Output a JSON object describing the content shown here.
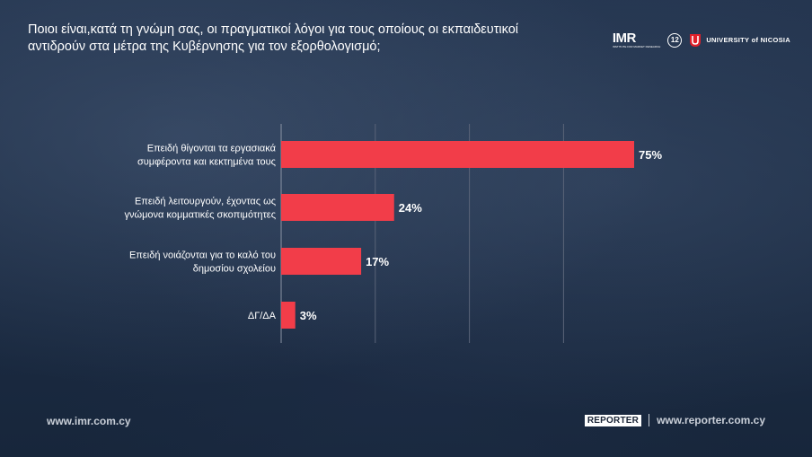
{
  "header": {
    "title": "Ποιοι είναι,κατά τη γνώμη σας, οι πραγματικοί λόγοι για τους οποίους οι εκπαιδευτικοί αντιδρούν στα μέτρα της Κυβέρνησης για τον εξορθολογισμό;"
  },
  "logos": {
    "imr": "IMR",
    "imr_sub": "INSTITUTE FOR MARKET RESEARCH",
    "anniversary": "12",
    "university": "UNIVERSITY of NICOSIA"
  },
  "footer": {
    "left_url": "www.imr.com.cy",
    "reporter_brand": "REPORTER",
    "right_url": "www.reporter.com.cy"
  },
  "colors": {
    "bar": "#f23d49",
    "gridline": "#5a6478"
  },
  "chart_data": {
    "type": "bar",
    "orientation": "horizontal",
    "title": "",
    "xlabel": "",
    "ylabel": "",
    "xlim": [
      0,
      80
    ],
    "grid": true,
    "categories": [
      [
        "Επειδή θίγονται τα εργασιακά",
        "συμφέροντα και κεκτημένα τους"
      ],
      [
        "Επειδή λειτουργούν, έχοντας ως",
        "γνώμονα κομματικές σκοπιμότητες"
      ],
      [
        "Επειδή νοιάζονται για το καλό του",
        "δημοσίου σχολείου"
      ],
      [
        "ΔΓ/ΔΑ"
      ]
    ],
    "values": [
      75,
      24,
      17,
      3
    ],
    "value_labels": [
      "75%",
      "24%",
      "17%",
      "3%"
    ]
  }
}
